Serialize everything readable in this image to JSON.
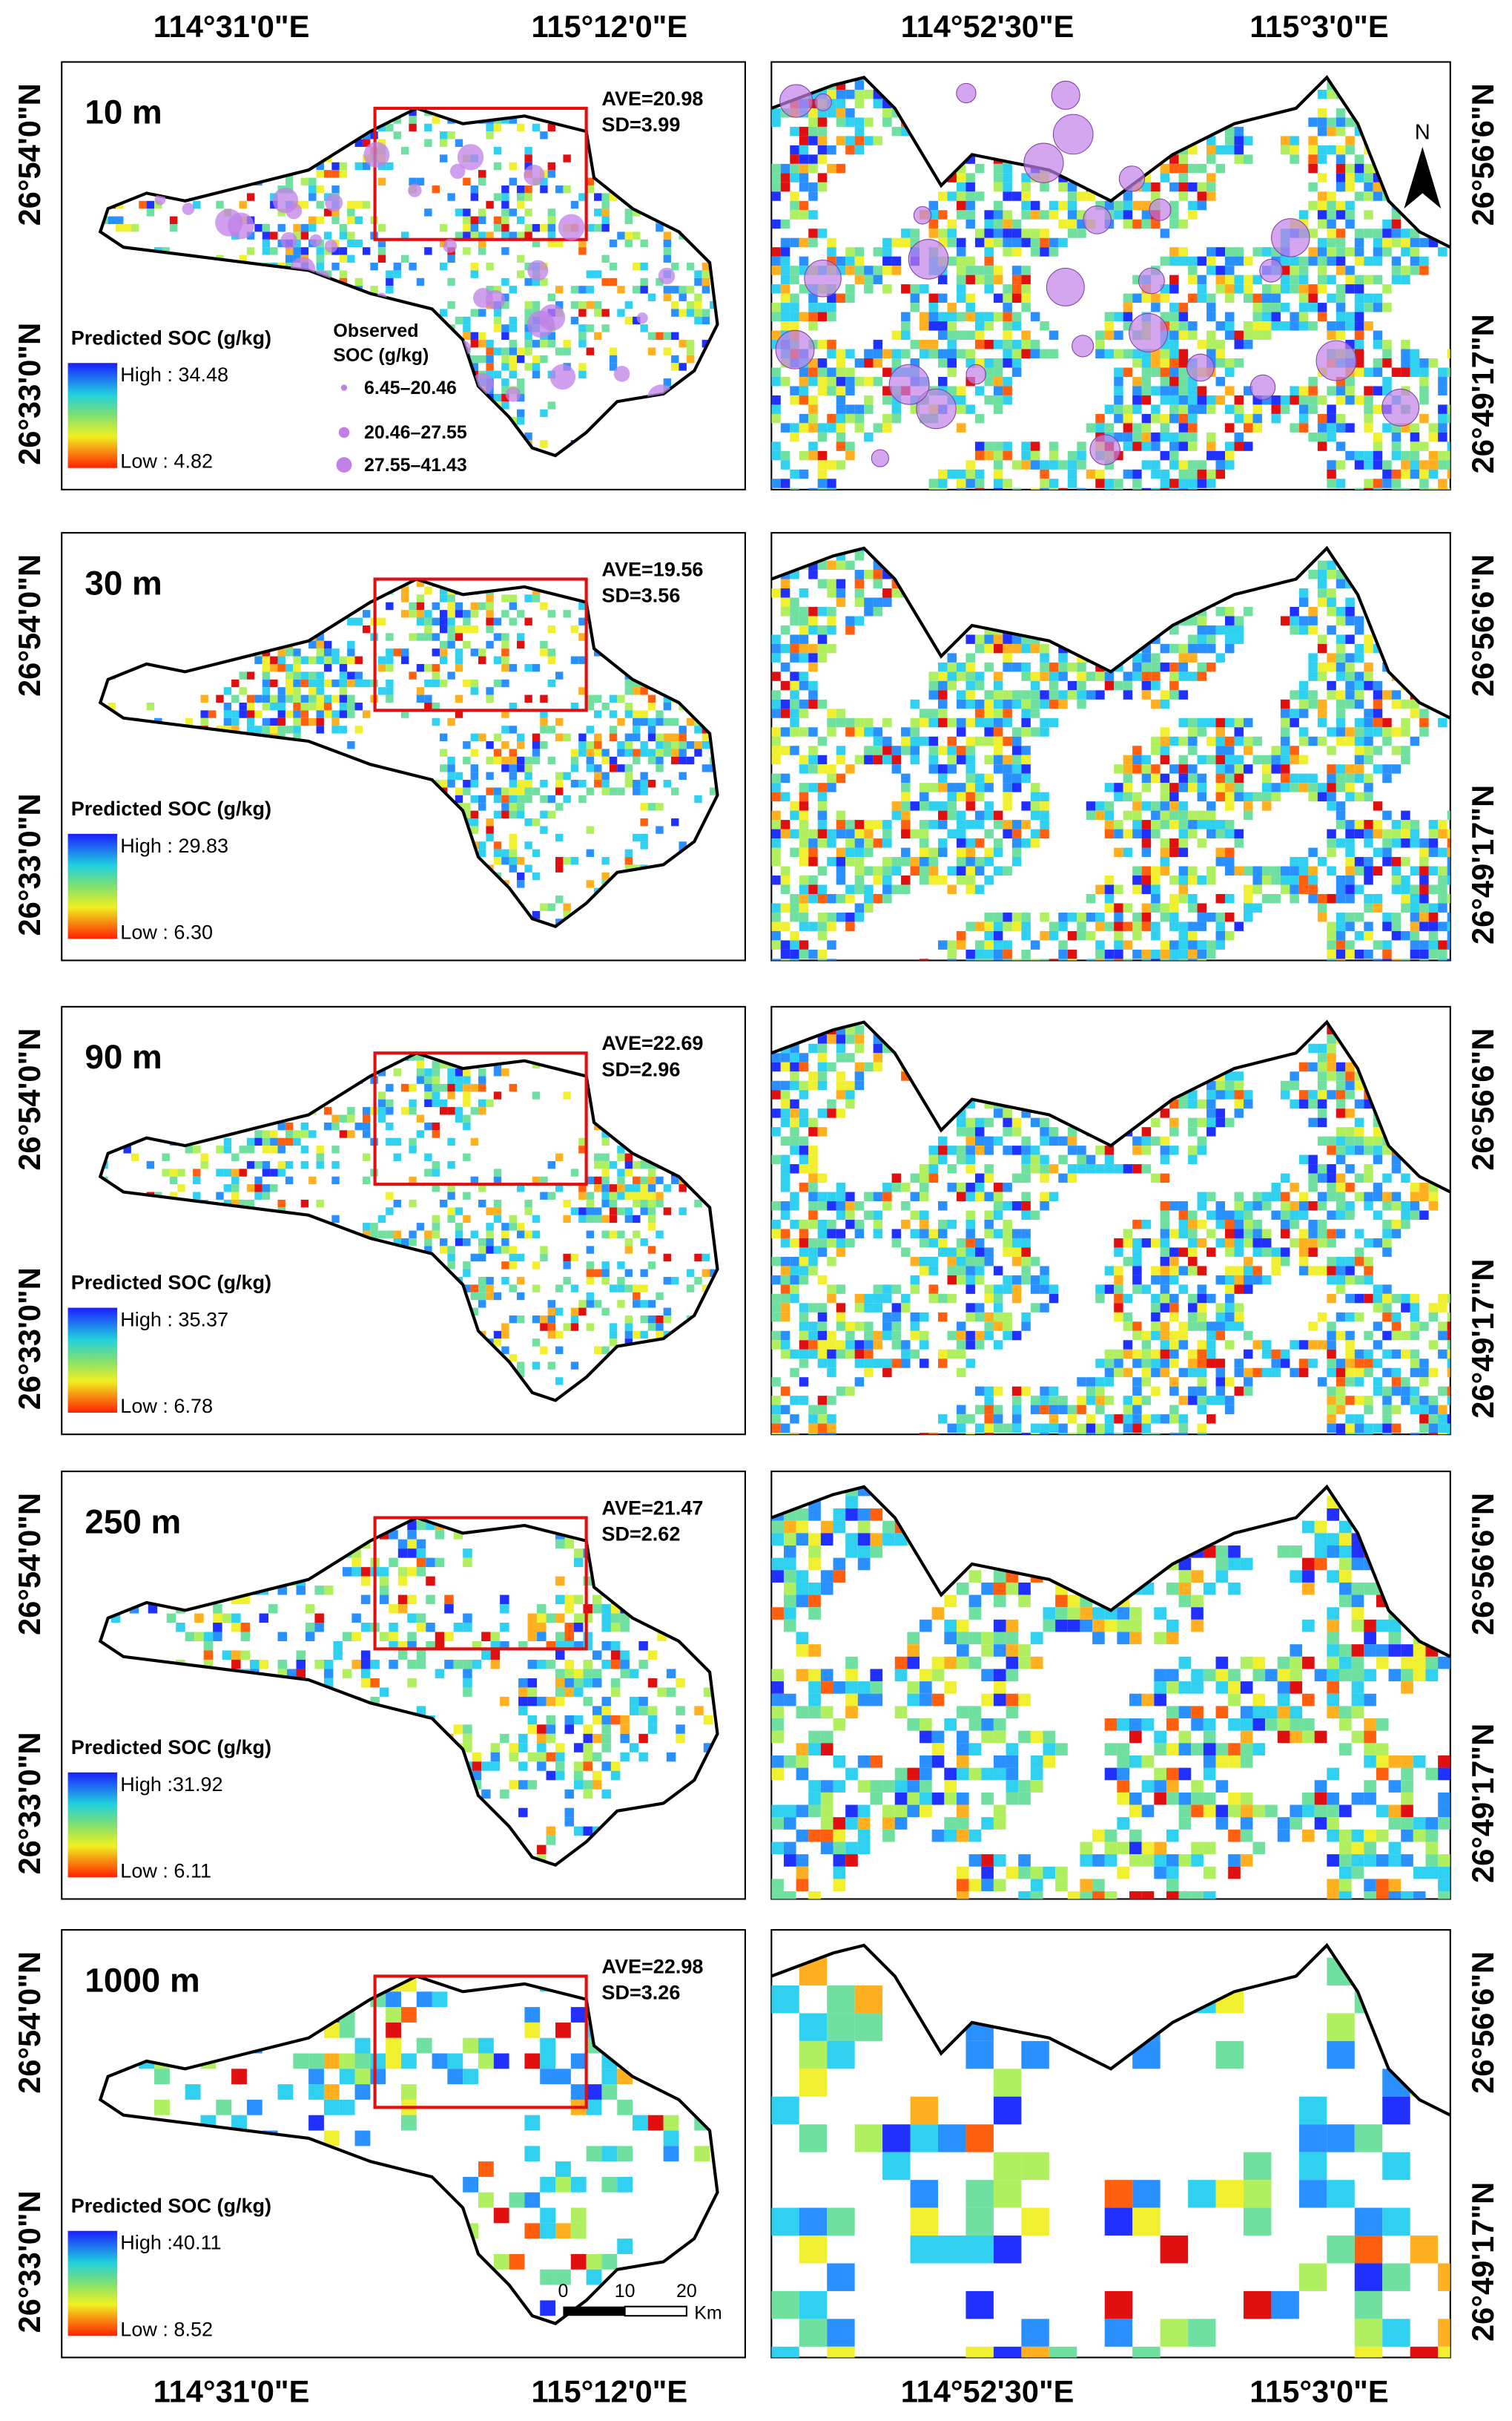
{
  "axes": {
    "x_labels": [
      "114°31'0\"E",
      "115°12'0\"E",
      "114°52'30\"E",
      "115°3'0\"E"
    ],
    "left_y_labels": [
      "26°54'0\"N",
      "26°33'0\"N"
    ],
    "right_y_labels": [
      "26°56'6\"N",
      "26°49'17\"N"
    ]
  },
  "panels": [
    {
      "resolution": "10 m",
      "stats": [
        "AVE=20.98",
        "SD=3.99"
      ],
      "legend_title": "Predicted SOC (g/kg)",
      "high": "High : 34.48",
      "low": "Low : 4.82"
    },
    {
      "resolution": "30 m",
      "stats": [
        "AVE=19.56",
        "SD=3.56"
      ],
      "legend_title": "Predicted SOC (g/kg)",
      "high": "High : 29.83",
      "low": "Low : 6.30"
    },
    {
      "resolution": "90 m",
      "stats": [
        "AVE=22.69",
        "SD=2.96"
      ],
      "legend_title": "Predicted SOC (g/kg)",
      "high": "High : 35.37",
      "low": "Low : 6.78"
    },
    {
      "resolution": "250 m",
      "stats": [
        "AVE=21.47",
        "SD=2.62"
      ],
      "legend_title": "Predicted SOC (g/kg)",
      "high": "High :31.92",
      "low": "Low : 6.11"
    },
    {
      "resolution": "1000 m",
      "stats": [
        "AVE=22.98",
        "SD=3.26"
      ],
      "legend_title": "Predicted SOC (g/kg)",
      "high": "High :40.11",
      "low": "Low : 8.52"
    }
  ],
  "observed_legend": {
    "title": [
      "Observed",
      "SOC (g/kg)"
    ],
    "items": [
      "6.45–20.46",
      "20.46–27.55",
      "27.55–41.43"
    ]
  },
  "scale_bar": {
    "ticks": [
      "0",
      "10",
      "20"
    ],
    "unit": "Km"
  },
  "north_arrow": "N"
}
